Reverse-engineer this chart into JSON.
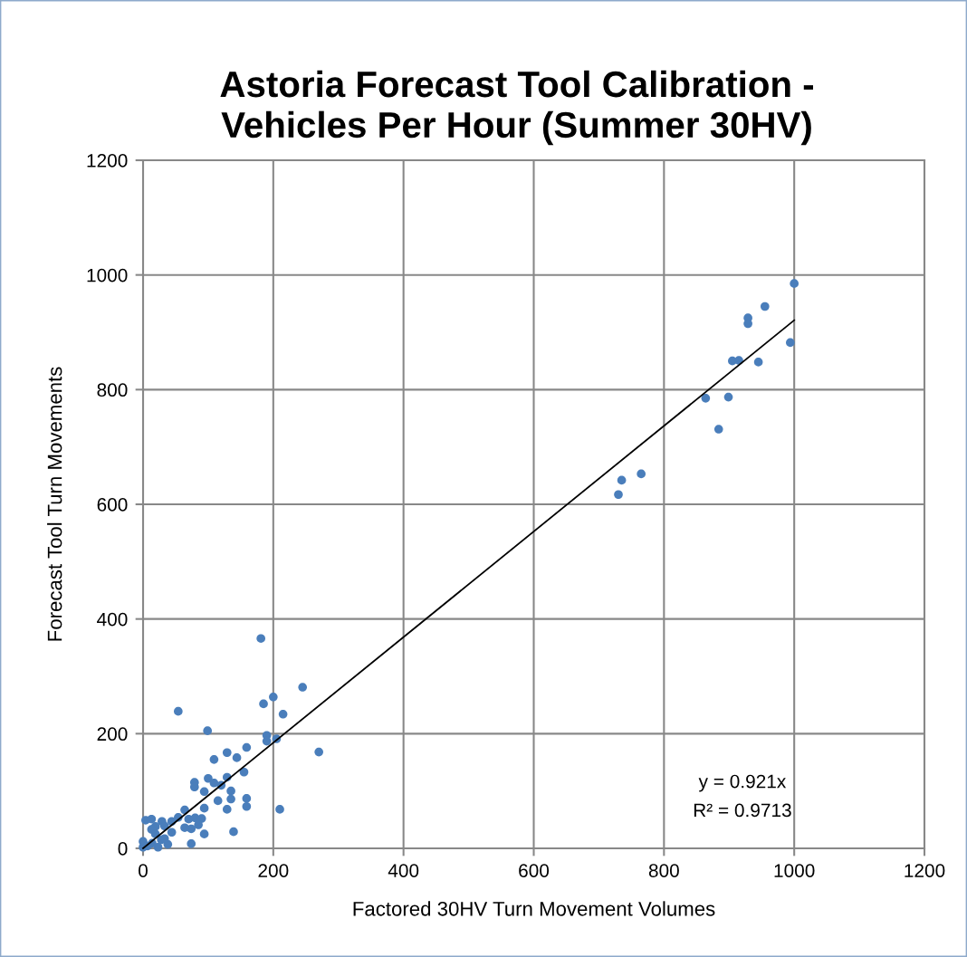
{
  "chart_data": {
    "type": "scatter",
    "title": "Astoria Forecast Tool Calibration -\nVehicles Per Hour (Summer 30HV)",
    "xlabel": "Factored 30HV Turn Movement Volumes",
    "ylabel": "Forecast Tool Turn Movements",
    "annotations": [
      "y = 0.921x",
      "R² = 0.9713"
    ],
    "series": [
      {
        "color": "#4a7ebb",
        "marker": "circle",
        "x": [
          245,
          200,
          185,
          54,
          215,
          99,
          190,
          190,
          205,
          270,
          159,
          129,
          109,
          144,
          155,
          100,
          129,
          79,
          79,
          109,
          120,
          94,
          135,
          135,
          159,
          159,
          115,
          129,
          210,
          94,
          64,
          54,
          44,
          29,
          13,
          4,
          19,
          70,
          80,
          90,
          85,
          74,
          64,
          44,
          33,
          94,
          139,
          74,
          38,
          23,
          14,
          0,
          0,
          7,
          28,
          13,
          19,
          33,
          181,
          1000,
          955,
          929,
          929,
          994,
          905,
          915,
          945,
          864,
          899,
          884,
          735,
          765,
          730
        ],
        "values": [
          281,
          264,
          252,
          239,
          234,
          205,
          197,
          187,
          191,
          168,
          176,
          167,
          155,
          158,
          133,
          122,
          124,
          115,
          107,
          114,
          110,
          99,
          100,
          86,
          87,
          73,
          83,
          68,
          68,
          70,
          67,
          54,
          47,
          47,
          51,
          49,
          38,
          51,
          53,
          52,
          41,
          34,
          36,
          28,
          39,
          25,
          29,
          8,
          7,
          2,
          9,
          12,
          2,
          4,
          15,
          33,
          25,
          17,
          366,
          985,
          945,
          925,
          915,
          882,
          850,
          851,
          848,
          785,
          787,
          731,
          642,
          653,
          617
        ]
      },
      {
        "type": "line",
        "color": "#000000",
        "marker": "none",
        "x": [
          0,
          1000
        ],
        "values": [
          0,
          921
        ]
      }
    ],
    "xlim": [
      0,
      1200
    ],
    "ylim": [
      0,
      1200
    ],
    "xticks": [
      0,
      200,
      400,
      600,
      800,
      1000,
      1200
    ],
    "yticks": [
      0,
      200,
      400,
      600,
      800,
      1000,
      1200
    ],
    "grid": true
  }
}
